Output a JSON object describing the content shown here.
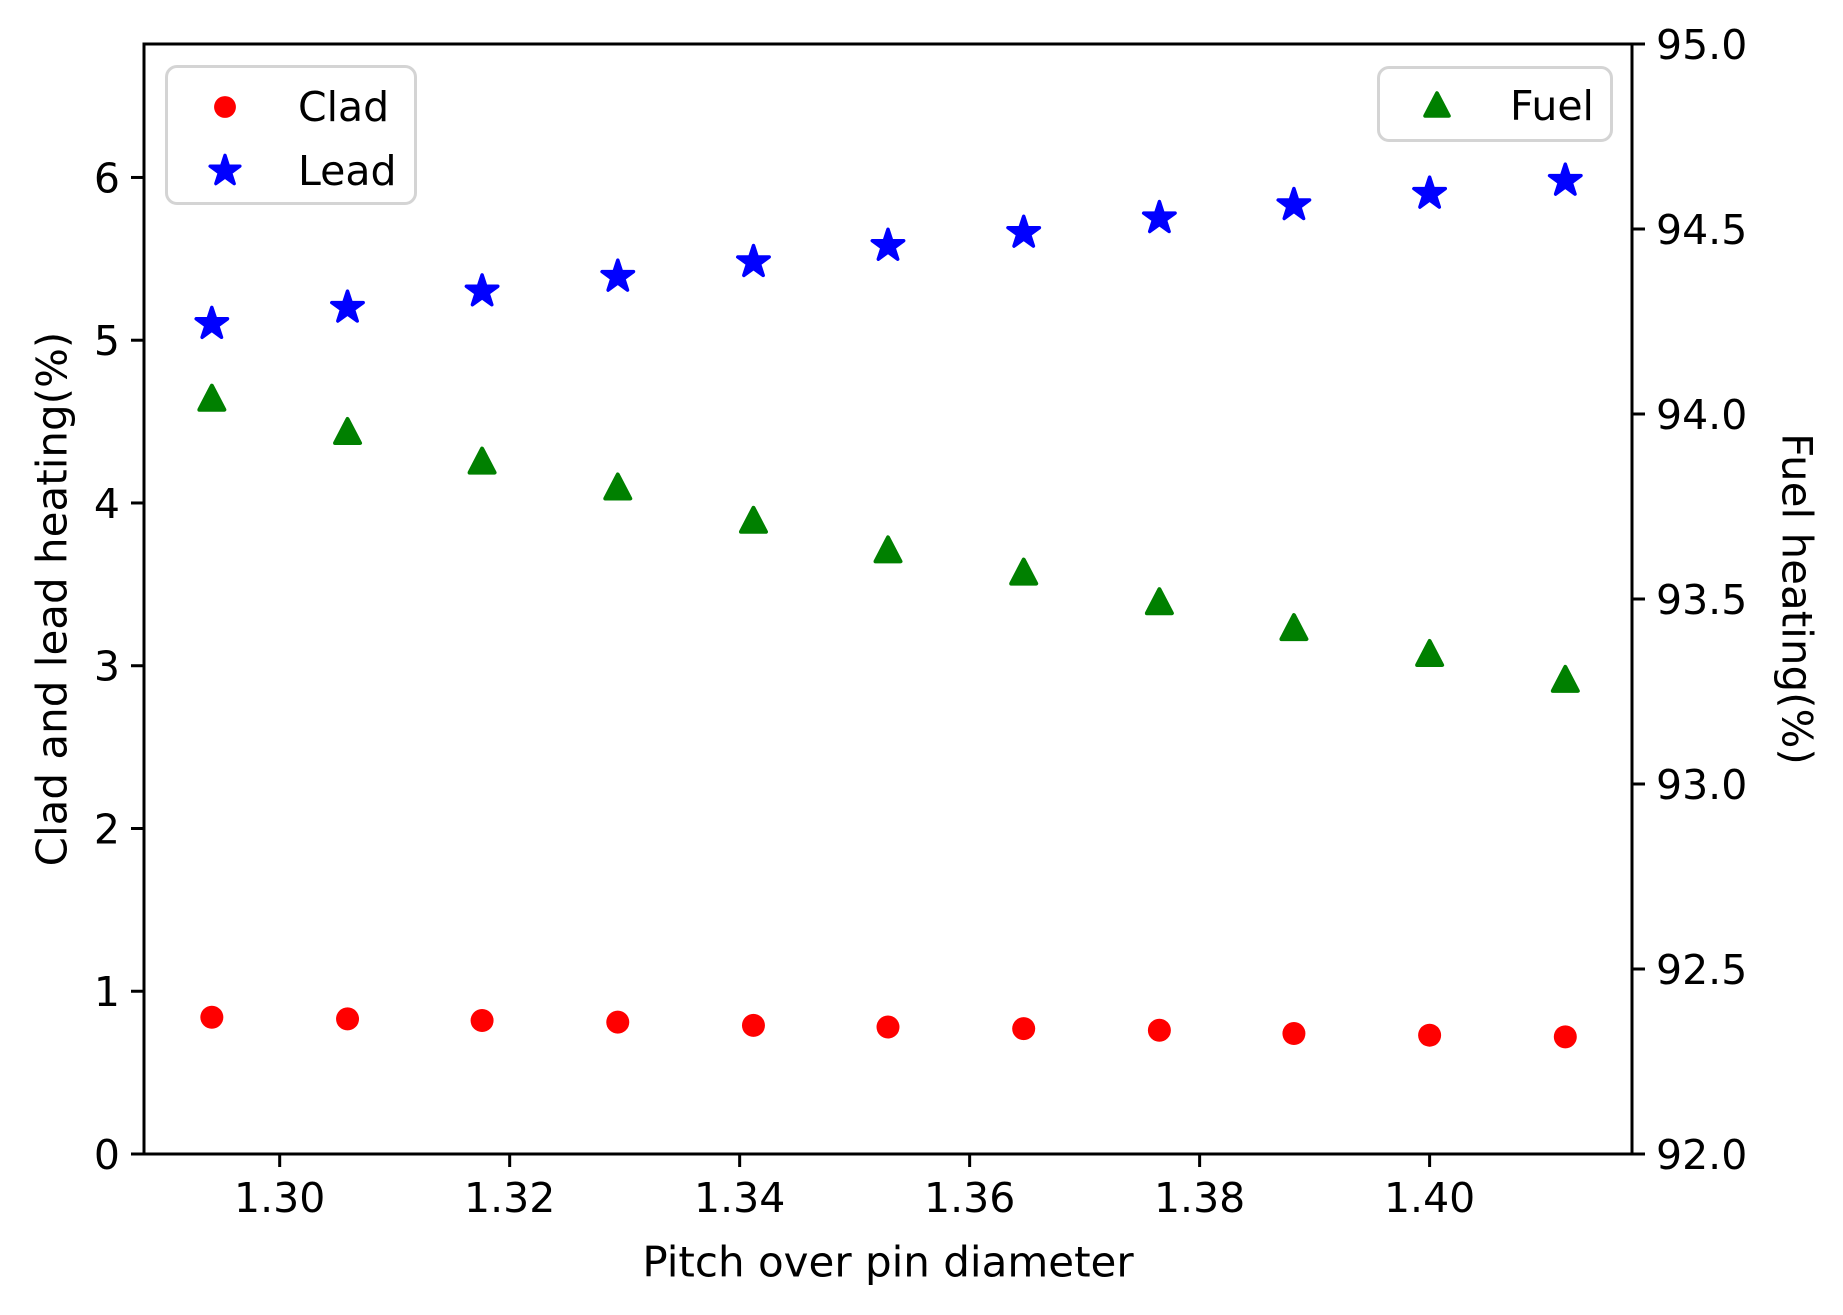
{
  "chart_data": {
    "type": "scatter",
    "title": "",
    "xlabel": "Pitch over pin diameter",
    "ylabel_left": "Clad and lead heating(%)",
    "ylabel_right": "Fuel heating(%)",
    "xlim": [
      1.2882,
      1.4176
    ],
    "ylim_left": [
      0,
      6.82
    ],
    "ylim_right": [
      92.0,
      95.0
    ],
    "grid": false,
    "xticks": [
      1.3,
      1.32,
      1.34,
      1.36,
      1.38,
      1.4
    ],
    "xtick_labels": [
      "1.30",
      "1.32",
      "1.34",
      "1.36",
      "1.38",
      "1.40"
    ],
    "yticks_left": [
      0,
      1,
      2,
      3,
      4,
      5,
      6
    ],
    "ytick_left_labels": [
      "0",
      "1",
      "2",
      "3",
      "4",
      "5",
      "6"
    ],
    "yticks_right": [
      92.0,
      92.5,
      93.0,
      93.5,
      94.0,
      94.5,
      95.0
    ],
    "ytick_right_labels": [
      "92.0",
      "92.5",
      "93.0",
      "93.5",
      "94.0",
      "94.5",
      "95.0"
    ],
    "x": [
      1.2941,
      1.3059,
      1.3176,
      1.3294,
      1.3412,
      1.3529,
      1.3647,
      1.3765,
      1.3882,
      1.4,
      1.4118
    ],
    "series": [
      {
        "name": "Clad",
        "axis": "left",
        "marker": "circle",
        "color": "#ff0000",
        "values": [
          0.84,
          0.83,
          0.82,
          0.81,
          0.79,
          0.78,
          0.77,
          0.76,
          0.74,
          0.73,
          0.72
        ]
      },
      {
        "name": "Lead",
        "axis": "left",
        "marker": "star",
        "color": "#0000ff",
        "values": [
          5.1,
          5.2,
          5.3,
          5.39,
          5.48,
          5.58,
          5.66,
          5.75,
          5.83,
          5.9,
          5.98
        ]
      },
      {
        "name": "Fuel",
        "axis": "right",
        "marker": "triangle",
        "color": "#008000",
        "values": [
          94.04,
          93.95,
          93.87,
          93.8,
          93.71,
          93.63,
          93.57,
          93.49,
          93.42,
          93.35,
          93.28
        ]
      }
    ],
    "legend_main_entries": [
      "Clad",
      "Lead"
    ],
    "legend_fuel_entries": [
      "Fuel"
    ],
    "legend_main_position": "upper left",
    "legend_fuel_position": "upper right",
    "colors": {
      "spine": "#000000",
      "text": "#000000",
      "legend_border": "#d4d4d4",
      "background": "#ffffff"
    }
  }
}
